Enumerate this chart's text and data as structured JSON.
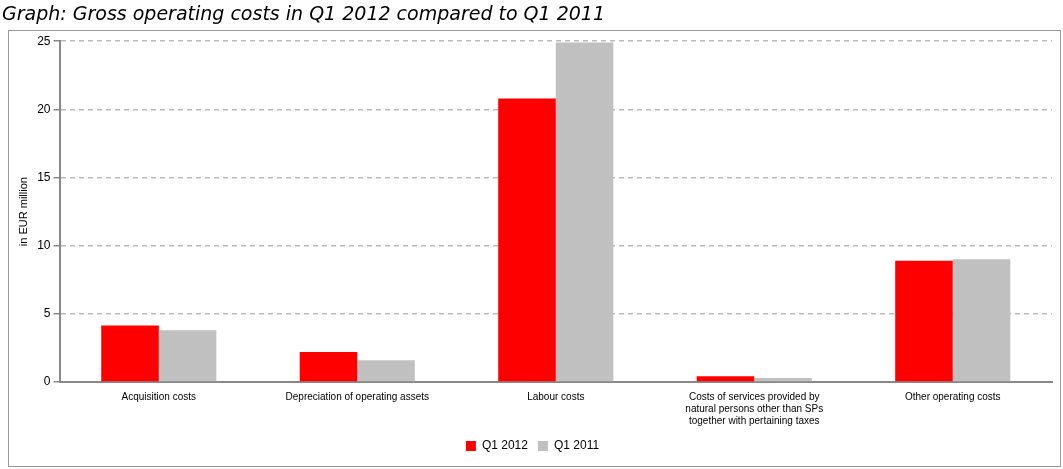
{
  "chart_data": {
    "type": "bar",
    "title": "Graph: Gross operating costs in Q1 2012 compared to Q1 2011",
    "ylabel": "in EUR million",
    "categories": [
      "Acquisition costs",
      "Depreciation of operating assets",
      "Labour costs",
      "Costs of services provided by natural persons other than SPs together with pertaining taxes",
      "Other operating costs"
    ],
    "series": [
      {
        "name": "Q1 2012",
        "color": "#ff0000",
        "values": [
          4.15,
          2.2,
          20.8,
          0.42,
          8.9
        ]
      },
      {
        "name": "Q1 2011",
        "color": "#c0c0c0",
        "values": [
          3.8,
          1.6,
          24.9,
          0.3,
          9.0
        ]
      }
    ],
    "ylim": [
      0,
      25
    ],
    "yticks": [
      0,
      5,
      10,
      15,
      20,
      25
    ],
    "grid": "y",
    "legend": "bottom"
  }
}
